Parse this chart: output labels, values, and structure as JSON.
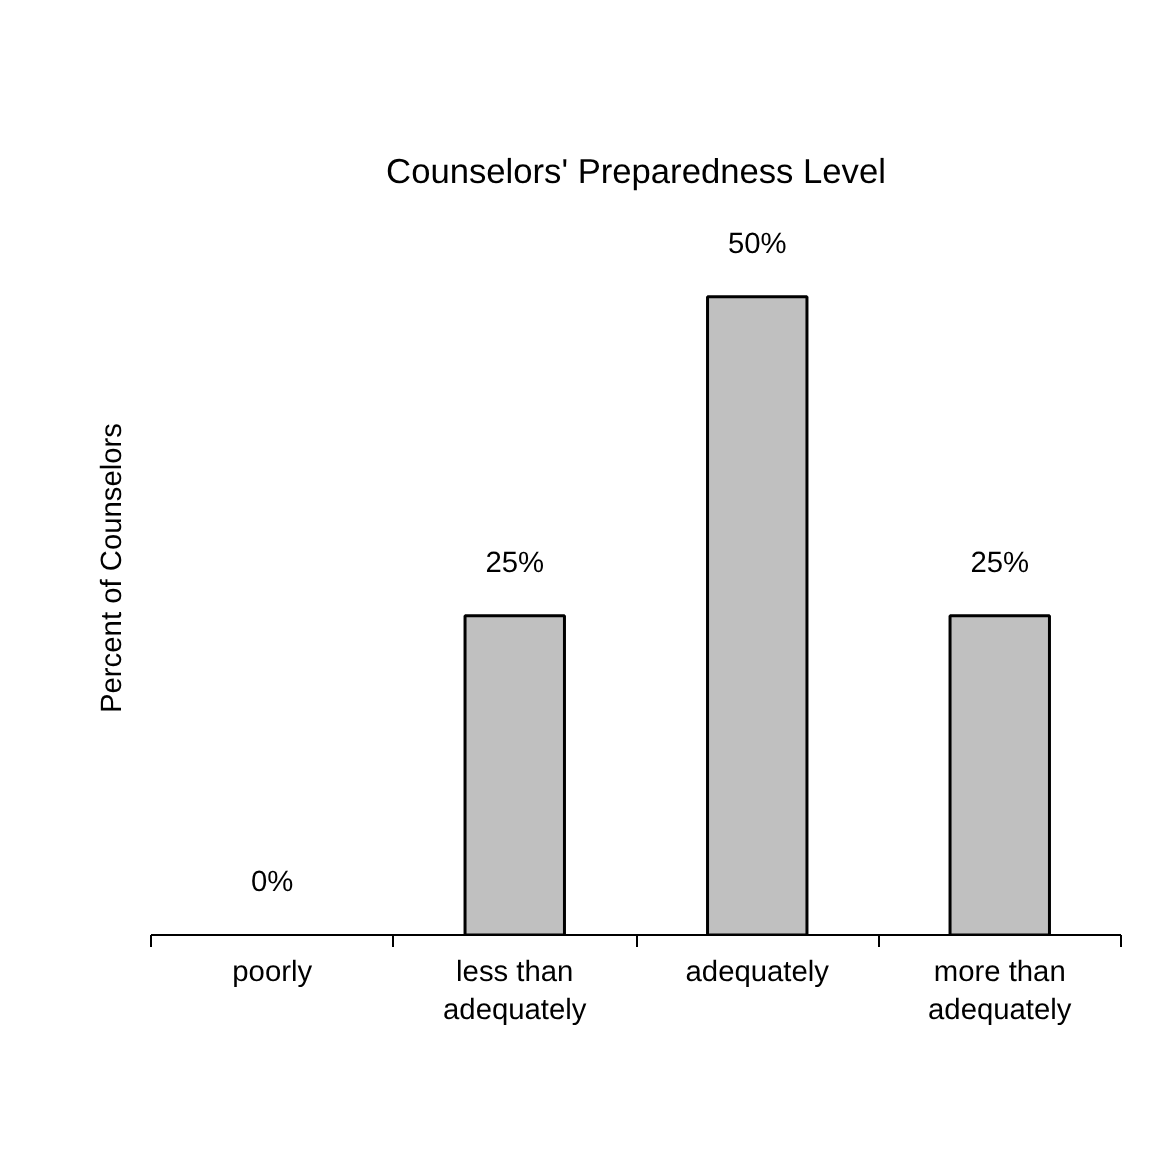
{
  "chart_data": {
    "type": "bar",
    "title": "Counselors' Preparedness Level",
    "ylabel": "Percent of Counselors",
    "categories": [
      "poorly",
      "less than adequately",
      "adequately",
      "more than adequately"
    ],
    "values": [
      0,
      25,
      50,
      25
    ],
    "color": "#c0c0c0",
    "value_labels": [
      "0%",
      "25%",
      "50%",
      "25%"
    ],
    "grid": false
  }
}
